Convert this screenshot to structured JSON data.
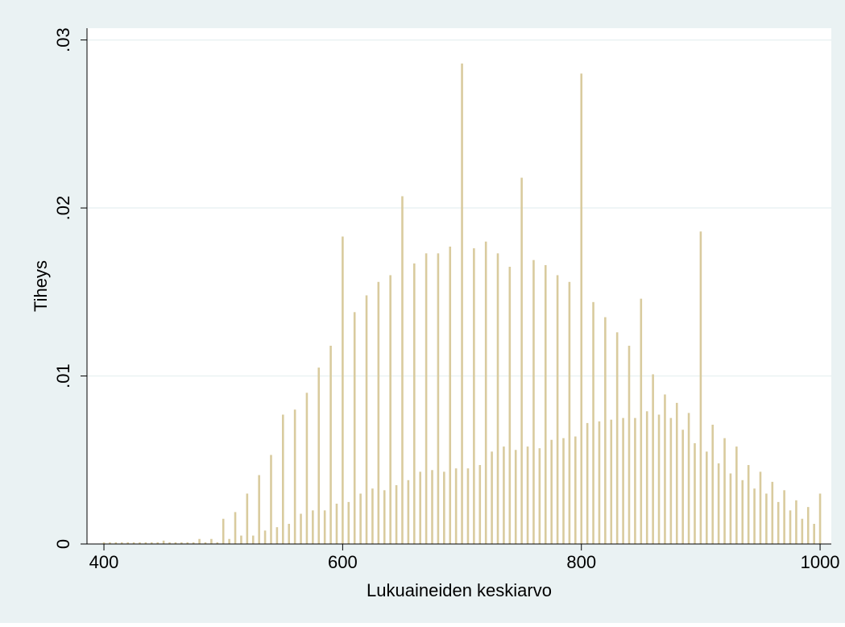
{
  "chart_data": {
    "type": "bar",
    "x_label": "Lukuaineiden keskiarvo",
    "y_label": "Tiheys",
    "color": "#d9cb9e",
    "grid": true,
    "xlim": [
      385.8,
      1009.4
    ],
    "ylim": [
      0,
      0.0307
    ],
    "xticks": [
      400,
      600,
      800,
      1000
    ],
    "yticks": [
      0,
      {
        "value": 0.01,
        "label": ".01"
      },
      {
        "value": 0.02,
        "label": ".02"
      },
      {
        "value": 0.03,
        "label": ".03"
      }
    ],
    "x": [
      400,
      405,
      410,
      415,
      420,
      425,
      430,
      435,
      440,
      445,
      450,
      455,
      460,
      465,
      470,
      475,
      480,
      485,
      490,
      495,
      500,
      505,
      510,
      515,
      520,
      525,
      530,
      535,
      540,
      545,
      550,
      555,
      560,
      565,
      570,
      575,
      580,
      585,
      590,
      595,
      600,
      605,
      610,
      615,
      620,
      625,
      630,
      635,
      640,
      645,
      650,
      655,
      660,
      665,
      670,
      675,
      680,
      685,
      690,
      695,
      700,
      705,
      710,
      715,
      720,
      725,
      730,
      735,
      740,
      745,
      750,
      755,
      760,
      765,
      770,
      775,
      780,
      785,
      790,
      795,
      800,
      805,
      810,
      815,
      820,
      825,
      830,
      835,
      840,
      845,
      850,
      855,
      860,
      865,
      870,
      875,
      880,
      885,
      890,
      895,
      900,
      905,
      910,
      915,
      920,
      925,
      930,
      935,
      940,
      945,
      950,
      955,
      960,
      965,
      970,
      975,
      980,
      985,
      990,
      995,
      1000
    ],
    "values": [
      0.0001,
      0.0001,
      0.0001,
      0.0001,
      0.0001,
      0.0001,
      0.0001,
      0.0001,
      0.0001,
      0.0001,
      0.0002,
      0.0001,
      0.0001,
      0.0001,
      0.0001,
      0.0001,
      0.0003,
      0.0001,
      0.0003,
      0.0001,
      0.0015,
      0.0003,
      0.0019,
      0.0005,
      0.003,
      0.0005,
      0.0041,
      0.0008,
      0.0053,
      0.001,
      0.0077,
      0.0012,
      0.008,
      0.0018,
      0.009,
      0.002,
      0.0105,
      0.002,
      0.0118,
      0.0024,
      0.0183,
      0.0025,
      0.0138,
      0.003,
      0.0148,
      0.0033,
      0.0156,
      0.0032,
      0.016,
      0.0035,
      0.0207,
      0.0038,
      0.0167,
      0.0043,
      0.0173,
      0.0044,
      0.0173,
      0.0043,
      0.0177,
      0.0045,
      0.0286,
      0.0045,
      0.0176,
      0.0047,
      0.018,
      0.0055,
      0.0173,
      0.0058,
      0.0165,
      0.0056,
      0.0218,
      0.0058,
      0.0169,
      0.0057,
      0.0166,
      0.0062,
      0.016,
      0.0063,
      0.0156,
      0.0064,
      0.028,
      0.0072,
      0.0144,
      0.0073,
      0.0135,
      0.0074,
      0.0126,
      0.0075,
      0.0118,
      0.0075,
      0.0146,
      0.0079,
      0.0101,
      0.0077,
      0.0089,
      0.0075,
      0.0084,
      0.0068,
      0.0078,
      0.006,
      0.0186,
      0.0055,
      0.0071,
      0.0048,
      0.0063,
      0.0042,
      0.0058,
      0.0038,
      0.0047,
      0.0033,
      0.0043,
      0.003,
      0.0037,
      0.0025,
      0.0032,
      0.002,
      0.0026,
      0.0015,
      0.0022,
      0.0012,
      0.003
    ]
  }
}
